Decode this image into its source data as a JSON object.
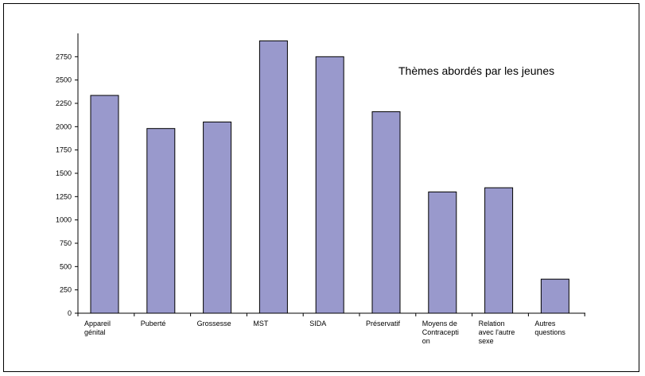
{
  "chart_data": {
    "type": "bar",
    "title": "Thèmes abordés par les jeunes",
    "xlabel": "",
    "ylabel": "",
    "categories": [
      [
        "Appareil",
        "génital"
      ],
      [
        "Puberté"
      ],
      [
        "Grossesse"
      ],
      [
        "MST"
      ],
      [
        "SIDA"
      ],
      [
        "Préservatif"
      ],
      [
        "Moyens de",
        "Contracepti",
        "on"
      ],
      [
        "Relation",
        "avec l'autre",
        "sexe"
      ],
      [
        "Autres",
        "questions"
      ]
    ],
    "values": [
      2335,
      1980,
      2050,
      2920,
      2750,
      2160,
      1300,
      1345,
      365
    ],
    "ylim": [
      0,
      3000
    ],
    "yticks": [
      0,
      250,
      500,
      750,
      1000,
      1250,
      1500,
      1750,
      2000,
      2250,
      2500,
      2750
    ],
    "grid": false,
    "legend": "none",
    "bar_color": "#9999cc",
    "bar_stroke": "#000000"
  }
}
